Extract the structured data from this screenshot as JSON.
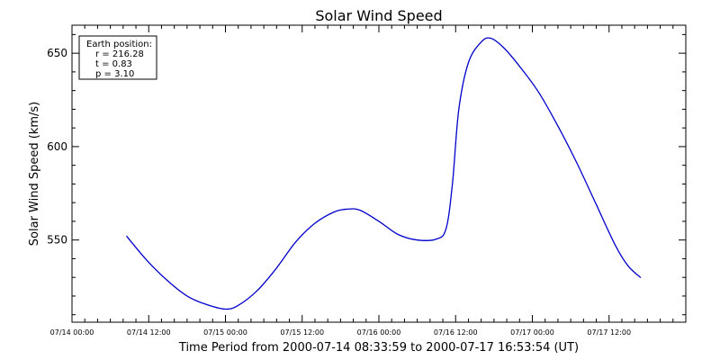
{
  "chart_data": {
    "type": "line",
    "title": "Solar Wind Speed",
    "xlabel": "Time Period from 2000-07-14 08:33:59 to 2000-07-17 16:53:54 (UT)",
    "ylabel": "Solar Wind Speed (km/s)",
    "x_axis": {
      "type": "datetime",
      "range": [
        "2000-07-14 00:00",
        "2000-07-18 00:00"
      ],
      "ticks": [
        {
          "x": "2000-07-14 00:00",
          "label": "07/14 00:00"
        },
        {
          "x": "2000-07-14 12:00",
          "label": "07/14 12:00"
        },
        {
          "x": "2000-07-15 00:00",
          "label": "07/15 00:00"
        },
        {
          "x": "2000-07-15 12:00",
          "label": "07/15 12:00"
        },
        {
          "x": "2000-07-16 00:00",
          "label": "07/16 00:00"
        },
        {
          "x": "2000-07-16 12:00",
          "label": "07/16 12:00"
        },
        {
          "x": "2000-07-17 00:00",
          "label": "07/17 00:00"
        },
        {
          "x": "2000-07-17 12:00",
          "label": "07/17 12:00"
        }
      ],
      "minor_per_major": 6
    },
    "y_axis": {
      "range": [
        506,
        665
      ],
      "ticks": [
        {
          "y": 550,
          "label": "550"
        },
        {
          "y": 600,
          "label": "600"
        },
        {
          "y": 650,
          "label": "650"
        }
      ],
      "minor_step": 10
    },
    "grid": false,
    "line_color": "#0000cc",
    "series": [
      {
        "points": [
          {
            "x": "2000-07-14 08:34",
            "y": 552
          },
          {
            "x": "2000-07-14 09:30",
            "y": 548
          },
          {
            "x": "2000-07-14 12:00",
            "y": 538
          },
          {
            "x": "2000-07-14 15:00",
            "y": 528
          },
          {
            "x": "2000-07-14 18:00",
            "y": 520
          },
          {
            "x": "2000-07-14 21:00",
            "y": 515.5
          },
          {
            "x": "2000-07-15 00:00",
            "y": 513
          },
          {
            "x": "2000-07-15 02:00",
            "y": 515
          },
          {
            "x": "2000-07-15 05:00",
            "y": 523
          },
          {
            "x": "2000-07-15 08:00",
            "y": 535
          },
          {
            "x": "2000-07-15 11:00",
            "y": 549
          },
          {
            "x": "2000-07-15 14:00",
            "y": 559
          },
          {
            "x": "2000-07-15 17:00",
            "y": 565
          },
          {
            "x": "2000-07-15 19:00",
            "y": 566.5
          },
          {
            "x": "2000-07-15 21:00",
            "y": 566
          },
          {
            "x": "2000-07-16 00:00",
            "y": 560
          },
          {
            "x": "2000-07-16 03:00",
            "y": 553
          },
          {
            "x": "2000-07-16 06:00",
            "y": 550
          },
          {
            "x": "2000-07-16 09:00",
            "y": 550.5
          },
          {
            "x": "2000-07-16 10:30",
            "y": 556
          },
          {
            "x": "2000-07-16 11:30",
            "y": 580
          },
          {
            "x": "2000-07-16 12:30",
            "y": 620
          },
          {
            "x": "2000-07-16 14:00",
            "y": 645
          },
          {
            "x": "2000-07-16 16:00",
            "y": 656
          },
          {
            "x": "2000-07-16 17:30",
            "y": 658
          },
          {
            "x": "2000-07-16 19:30",
            "y": 653
          },
          {
            "x": "2000-07-16 22:00",
            "y": 643
          },
          {
            "x": "2000-07-17 01:00",
            "y": 629
          },
          {
            "x": "2000-07-17 04:00",
            "y": 611
          },
          {
            "x": "2000-07-17 07:00",
            "y": 591
          },
          {
            "x": "2000-07-17 10:00",
            "y": 569
          },
          {
            "x": "2000-07-17 13:00",
            "y": 547
          },
          {
            "x": "2000-07-17 15:00",
            "y": 536
          },
          {
            "x": "2000-07-17 16:54",
            "y": 530
          }
        ]
      }
    ],
    "info_box": {
      "title": "Earth position:",
      "lines": [
        "r = 216.28",
        "t = 0.83",
        "p = 3.10"
      ],
      "placement": "top-left"
    }
  }
}
